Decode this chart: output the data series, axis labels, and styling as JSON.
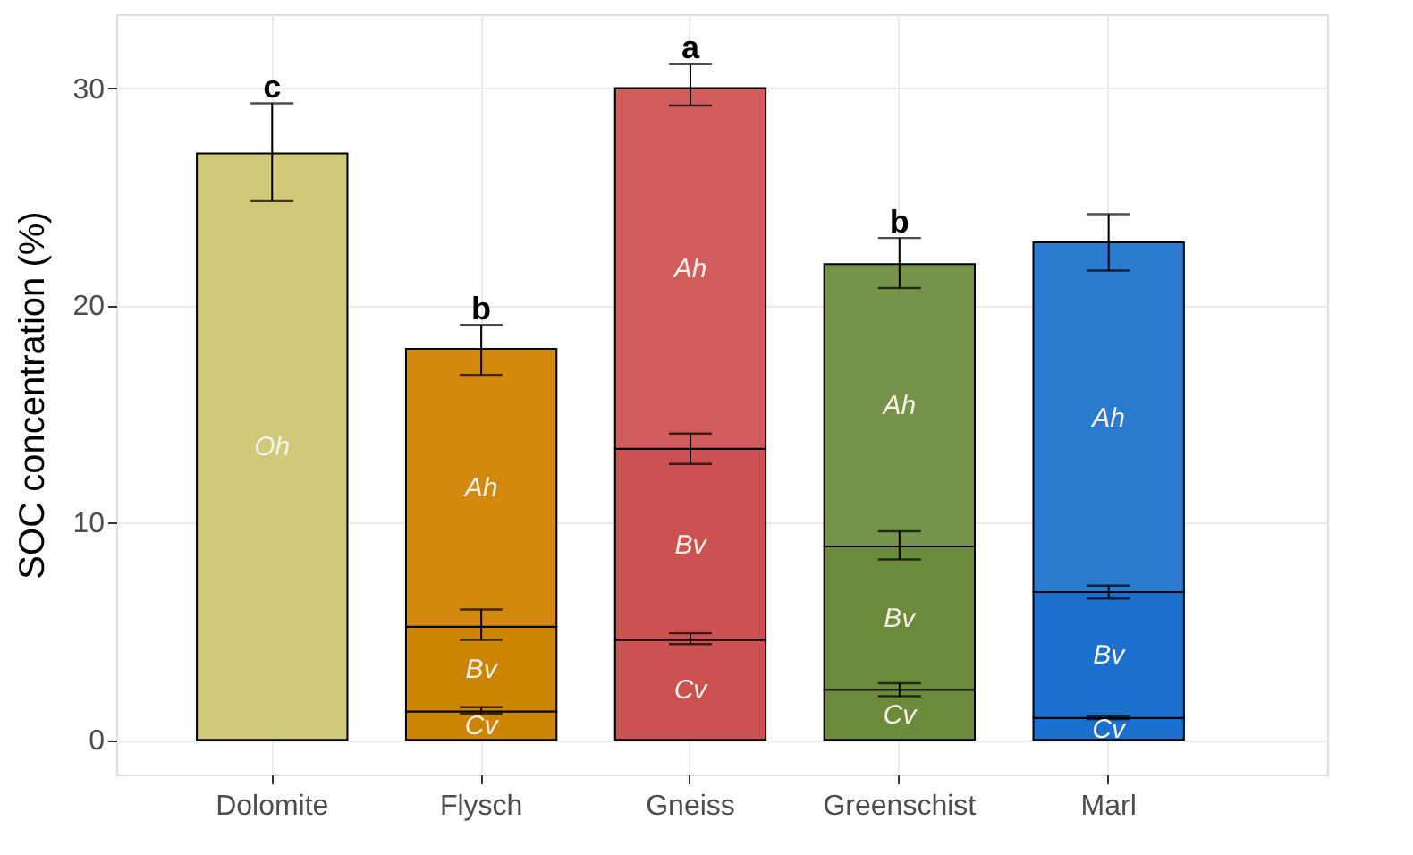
{
  "chart_data": {
    "type": "bar",
    "stacked": true,
    "ylabel": "SOC concentration (%)",
    "categories": [
      "Dolomite",
      "Flysch",
      "Gneiss",
      "Greenschist",
      "Marl"
    ],
    "series": [
      {
        "name": "Oh",
        "colors": [
          "#d0c97a",
          null,
          null,
          null,
          null
        ],
        "values": [
          27.0,
          null,
          null,
          null,
          null
        ],
        "errors": [
          [
            24.8,
            29.3
          ],
          null,
          null,
          null,
          null
        ]
      },
      {
        "name": "Cv",
        "colors": [
          null,
          "#cc8500",
          "#cc5252",
          "#6b8a3c",
          "#1a70cc"
        ],
        "values": [
          null,
          1.3,
          4.6,
          2.3,
          1.0
        ],
        "errors": [
          null,
          [
            1.2,
            1.5
          ],
          [
            4.4,
            4.9
          ],
          [
            2.0,
            2.6
          ],
          [
            0.95,
            1.1
          ]
        ]
      },
      {
        "name": "Bv",
        "colors": [
          null,
          "#cc8500",
          "#cc5252",
          "#6b8a3c",
          "#1a70cc"
        ],
        "values": [
          null,
          3.9,
          8.8,
          6.6,
          5.8
        ],
        "errors": [
          null,
          [
            4.6,
            6.0
          ],
          [
            12.7,
            14.1
          ],
          [
            8.3,
            9.6
          ],
          [
            6.5,
            7.1
          ]
        ]
      },
      {
        "name": "Ah",
        "colors": [
          null,
          "#d2890e",
          "#d15c5c",
          "#77934a",
          "#2a7bd0"
        ],
        "values": [
          null,
          12.8,
          16.6,
          13.0,
          16.1
        ],
        "errors": [
          null,
          [
            16.8,
            19.1
          ],
          [
            29.2,
            31.1
          ],
          [
            20.8,
            23.1
          ],
          [
            21.6,
            24.2
          ]
        ]
      }
    ],
    "annotations": [
      {
        "text": "c",
        "x": "Dolomite",
        "y": 29.4
      },
      {
        "text": "b",
        "x": "Flysch",
        "y": 19.2
      },
      {
        "text": "a",
        "x": "Gneiss",
        "y": 31.2
      },
      {
        "text": "b",
        "x": "Greenschist",
        "y": 23.2
      }
    ],
    "ylim": [
      -1.6,
      33.4
    ],
    "yticks": [
      0,
      10,
      20,
      30
    ],
    "grid": true
  }
}
